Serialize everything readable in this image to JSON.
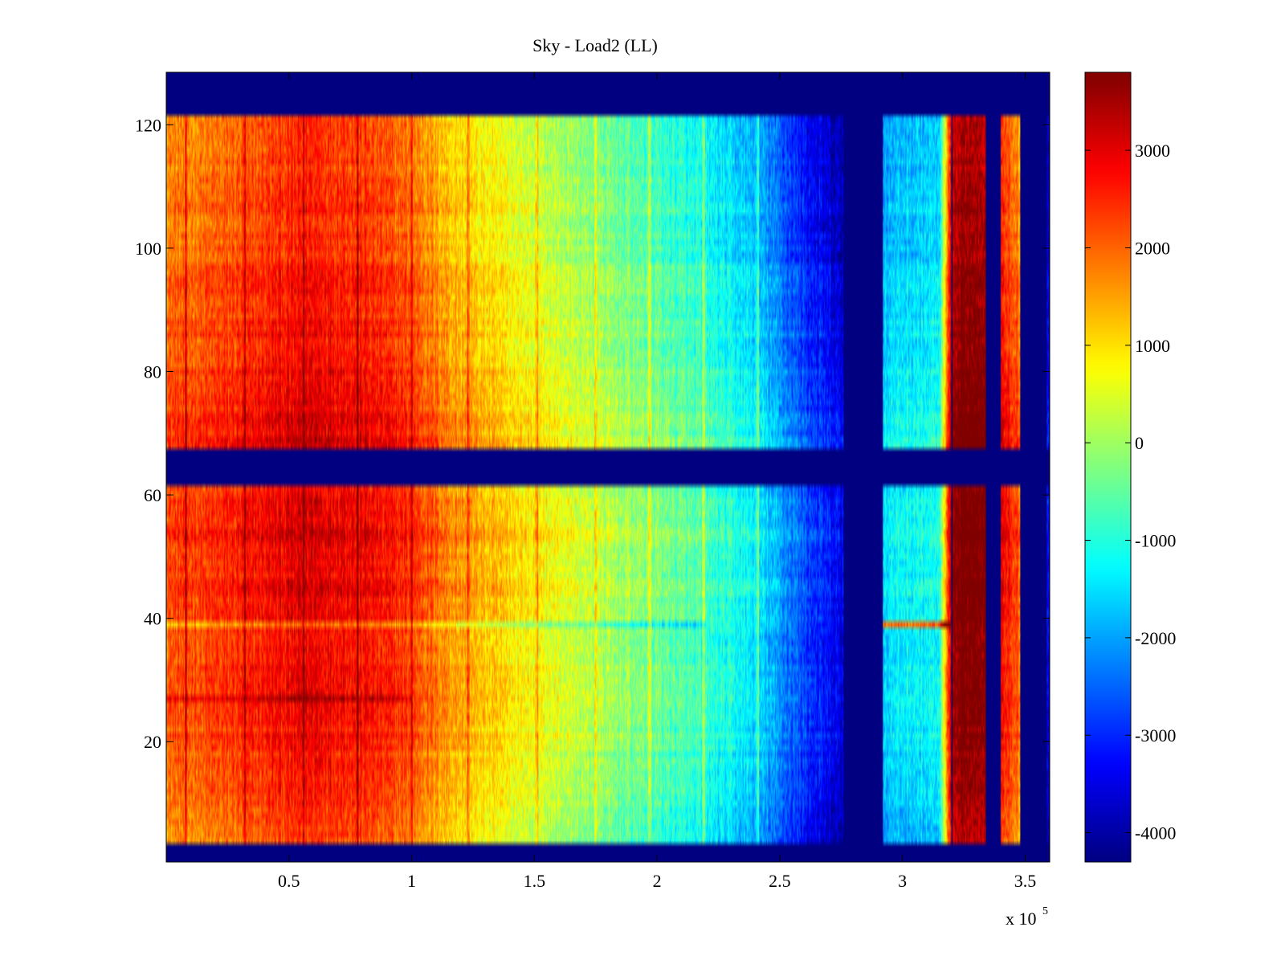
{
  "chart_data": {
    "type": "heatmap",
    "title": "Sky - Load2 (LL)",
    "xlabel": "",
    "ylabel": "",
    "x_multiplier_label": "x 10",
    "x_multiplier_exponent": "5",
    "xlim": [
      0,
      3.6
    ],
    "ylim": [
      0.5,
      128.5
    ],
    "x_ticks": [
      0.5,
      1,
      1.5,
      2,
      2.5,
      3,
      3.5
    ],
    "x_tick_labels": [
      "0.5",
      "1",
      "1.5",
      "2",
      "2.5",
      "3",
      "3.5"
    ],
    "y_ticks": [
      20,
      40,
      60,
      80,
      100,
      120
    ],
    "y_tick_labels": [
      "20",
      "40",
      "60",
      "80",
      "100",
      "120"
    ],
    "colormap": "jet",
    "clim": [
      -4300,
      3800
    ],
    "colorbar_ticks": [
      3000,
      2000,
      1000,
      0,
      -1000,
      -2000,
      -3000,
      -4000
    ],
    "colorbar_tick_labels": [
      "3000",
      "2000",
      "1000",
      "0",
      "-1000",
      "-2000",
      "-3000",
      "-4000"
    ],
    "masked_value": -4300,
    "masked_row_ranges": [
      [
        0.5,
        3.5
      ],
      [
        61.5,
        67.5
      ],
      [
        121.5,
        128.5
      ]
    ],
    "masked_column_ranges": [
      [
        2.76,
        2.92
      ],
      [
        3.2,
        3.205
      ],
      [
        3.34,
        3.4
      ],
      [
        3.48,
        3.59
      ]
    ],
    "column_profile": {
      "x": [
        0.0,
        0.15,
        0.3,
        0.45,
        0.6,
        0.8,
        1.0,
        1.2,
        1.5,
        1.8,
        2.0,
        2.2,
        2.4,
        2.6,
        2.75,
        2.92,
        3.0,
        3.15,
        3.2,
        3.25,
        3.34,
        3.4,
        3.47,
        3.6
      ],
      "values": [
        1900,
        2000,
        2200,
        2500,
        2700,
        2500,
        2050,
        1200,
        500,
        -200,
        -600,
        -1100,
        -1700,
        -3000,
        -3800,
        -1800,
        -1600,
        -1500,
        3300,
        3700,
        3700,
        2800,
        1800,
        -3800
      ]
    },
    "row_profile": {
      "rows": [
        4,
        20,
        40,
        55,
        61,
        68,
        75,
        90,
        105,
        121
      ],
      "offsets": [
        -400,
        200,
        300,
        500,
        300,
        500,
        300,
        100,
        -100,
        -300
      ]
    },
    "narrow_vertical_streaks": {
      "x": [
        0.08,
        0.32,
        0.56,
        0.78,
        1.0,
        1.23,
        1.51,
        1.75,
        1.97,
        2.19,
        2.41
      ],
      "offset": 800
    },
    "horizontal_streaks": [
      {
        "row": 39,
        "x_range": [
          0.0,
          2.2
        ],
        "offset": -900
      },
      {
        "row": 39,
        "x_range": [
          2.92,
          3.2
        ],
        "offset": 3300
      },
      {
        "row": 27,
        "x_range": [
          0.0,
          1.0
        ],
        "offset": 500
      }
    ]
  }
}
